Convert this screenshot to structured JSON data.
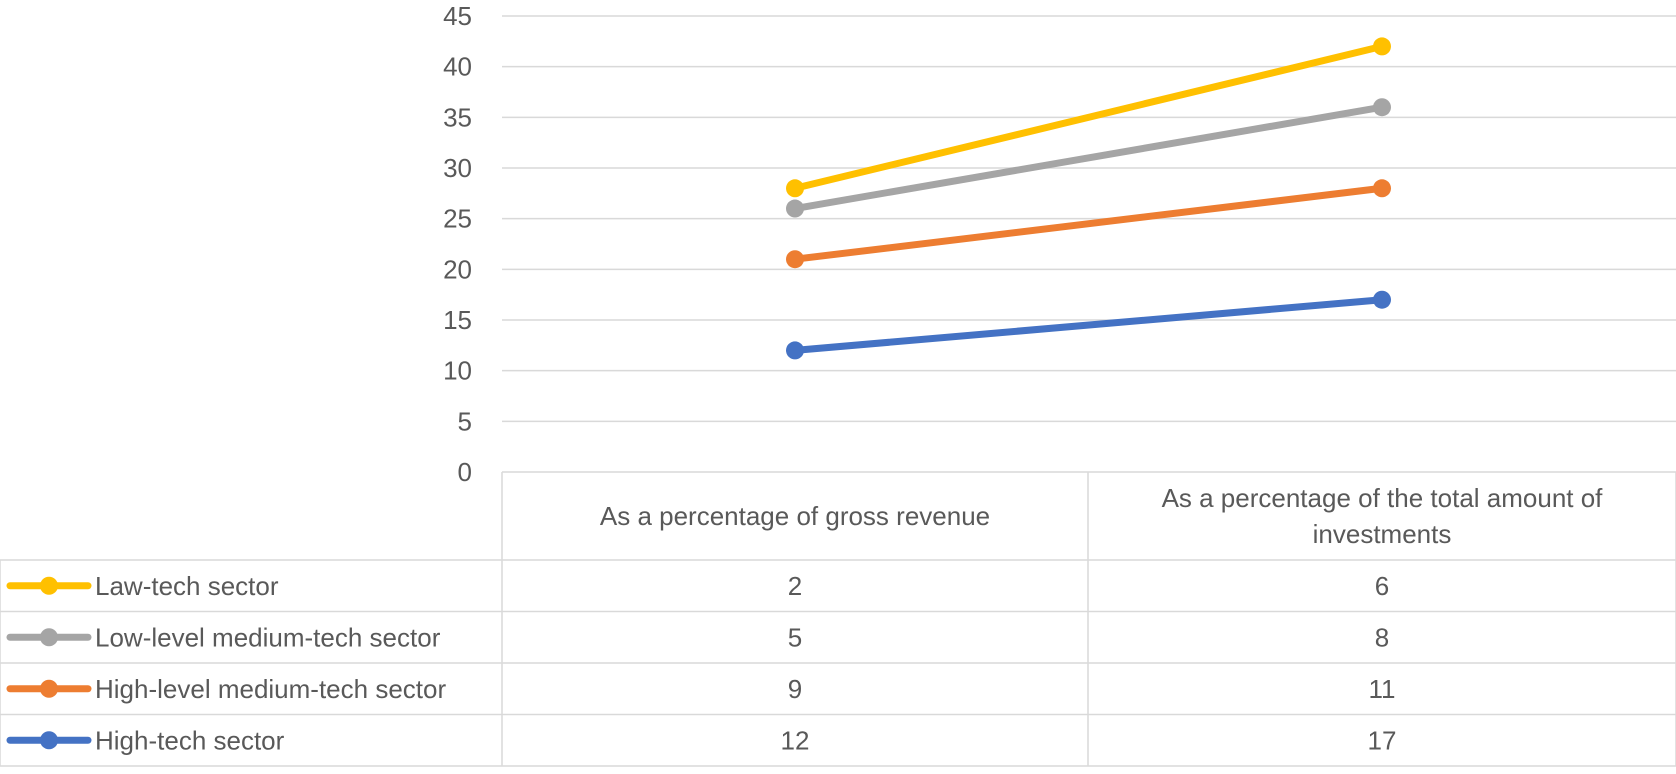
{
  "chart_data": {
    "type": "line",
    "title": "",
    "xlabel": "",
    "ylabel": "",
    "ylim": [
      0,
      45
    ],
    "y_ticks": [
      "0",
      "5",
      "10",
      "15",
      "20",
      "25",
      "30",
      "35",
      "40",
      "45"
    ],
    "grid": true,
    "legend": "data-table",
    "categories": [
      [
        "As a percentage of gross revenue"
      ],
      [
        "As a percentage of the total amount of",
        "investments"
      ]
    ],
    "series": [
      {
        "name": "Law-tech sector",
        "color": "#ffc000",
        "values": [
          28,
          42
        ],
        "table_values": [
          "2",
          "6"
        ]
      },
      {
        "name": "Low-level medium-tech sector",
        "color": "#a5a5a5",
        "values": [
          26,
          36
        ],
        "table_values": [
          "5",
          "8"
        ]
      },
      {
        "name": "High-level medium-tech sector",
        "color": "#ed7d31",
        "values": [
          21,
          28
        ],
        "table_values": [
          "9",
          "11"
        ]
      },
      {
        "name": "High-tech sector",
        "color": "#4472c4",
        "values": [
          12,
          17
        ],
        "table_values": [
          "12",
          "17"
        ]
      }
    ]
  }
}
